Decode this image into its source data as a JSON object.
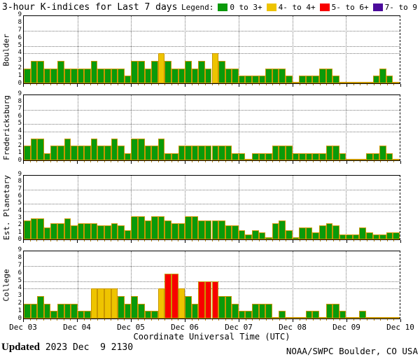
{
  "title": "3-hour K-indices for Last 7 days",
  "legend": {
    "label": "Legend:",
    "items": [
      {
        "label": "0 to 3+",
        "color": "#0a9a0a"
      },
      {
        "label": "4- to 4+",
        "color": "#eec400"
      },
      {
        "label": "5- to 6+",
        "color": "#f80000"
      },
      {
        "label": "7- to 9",
        "color": "#4b0b9b"
      }
    ]
  },
  "x_axis": {
    "tick_labels": [
      "Dec 03",
      "Dec 04",
      "Dec 05",
      "Dec 06",
      "Dec 07",
      "Dec 08",
      "Dec 09",
      "Dec 10"
    ],
    "title": "Coordinate Universal Time (UTC)"
  },
  "footer": {
    "updated_label": "Updated",
    "updated_value": " 2023 Dec  9 2130",
    "credit": "NOAA/SWPC Boulder, CO USA"
  },
  "chart_data": {
    "type": "bar",
    "ylim": [
      0,
      9
    ],
    "y_tick_labels": [
      "0",
      "1",
      "2",
      "3",
      "4",
      "5",
      "6",
      "7",
      "8",
      "9"
    ],
    "threshold_gridlines": [
      4,
      5,
      7
    ],
    "bars_per_day": 8,
    "days": [
      "Dec 03",
      "Dec 04",
      "Dec 05",
      "Dec 06",
      "Dec 07",
      "Dec 08",
      "Dec 09"
    ],
    "color_rule": {
      "yellow_min": 3.67,
      "red_min": 4.67,
      "purple_min": 6.67
    },
    "colors": {
      "green": "#0a9a0a",
      "yellow": "#eec400",
      "red": "#f80000",
      "purple": "#4b0b9b",
      "bar_border": "#c89600",
      "grid": "#777777"
    },
    "panels": [
      {
        "station": "Boulder",
        "values": [
          2,
          3,
          3,
          2,
          2,
          3,
          2,
          2,
          2,
          2,
          3,
          2,
          2,
          2,
          2,
          1,
          3,
          3,
          2,
          3,
          4,
          3,
          2,
          2,
          3,
          2,
          3,
          2,
          4,
          3,
          2,
          2,
          1,
          1,
          1,
          1,
          2,
          2,
          2,
          1,
          0,
          1,
          1,
          1,
          2,
          2,
          1,
          0,
          0,
          0,
          0,
          0,
          1,
          2,
          1,
          0
        ]
      },
      {
        "station": "Fredericksburg",
        "values": [
          2,
          3,
          3,
          1,
          2,
          2,
          3,
          2,
          2,
          2,
          3,
          2,
          2,
          3,
          2,
          1,
          3,
          3,
          2,
          2,
          3,
          1,
          1,
          2,
          2,
          2,
          2,
          2,
          2,
          2,
          2,
          1,
          1,
          0,
          1,
          1,
          1,
          2,
          2,
          2,
          1,
          1,
          1,
          1,
          1,
          2,
          2,
          1,
          0,
          0,
          0,
          1,
          1,
          2,
          1,
          0
        ]
      },
      {
        "station": "Est. Planetary",
        "values": [
          2.7,
          3,
          3,
          1.7,
          2.3,
          2.3,
          3,
          2,
          2.3,
          2.3,
          2.3,
          2,
          2,
          2.3,
          2,
          1.3,
          3.3,
          3.3,
          2.7,
          3.3,
          3.3,
          2.7,
          2.3,
          2.3,
          3.3,
          3.3,
          2.7,
          2.7,
          2.7,
          2.7,
          2,
          2,
          1.3,
          0.7,
          1.3,
          1,
          0.3,
          2.3,
          2.7,
          1.3,
          0.3,
          1.7,
          1.7,
          1,
          2,
          2.3,
          2,
          0.7,
          0.7,
          0.7,
          1.7,
          1,
          0.7,
          0.7,
          1,
          1
        ]
      },
      {
        "station": "College",
        "values": [
          2,
          2,
          3,
          2,
          1,
          2,
          2,
          2,
          1,
          1,
          4,
          4,
          4,
          4,
          3,
          2,
          3,
          2,
          1,
          1,
          4,
          6,
          6,
          4,
          3,
          2,
          5,
          5,
          5,
          3,
          3,
          2,
          1,
          1,
          2,
          2,
          2,
          0,
          1,
          0,
          0,
          0,
          1,
          1,
          0,
          2,
          2,
          1,
          0,
          0,
          1,
          0,
          0,
          0,
          0,
          0
        ]
      }
    ]
  }
}
